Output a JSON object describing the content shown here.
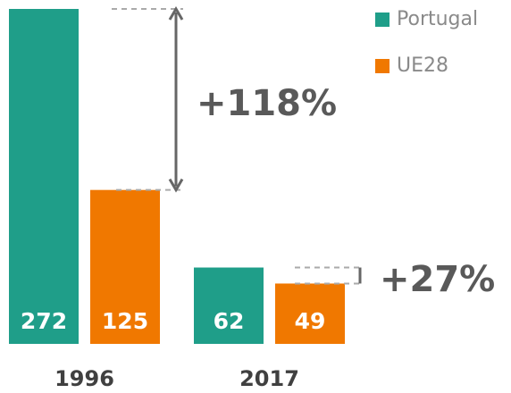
{
  "chart_data": {
    "type": "bar",
    "categories": [
      "1996",
      "2017"
    ],
    "series": [
      {
        "name": "Portugal",
        "color": "#1f9e89",
        "values": [
          272,
          62
        ]
      },
      {
        "name": "UE28",
        "color": "#f07800",
        "values": [
          125,
          49
        ]
      }
    ],
    "annotations": [
      "+118%",
      "+27%"
    ],
    "legend": "top-right"
  }
}
